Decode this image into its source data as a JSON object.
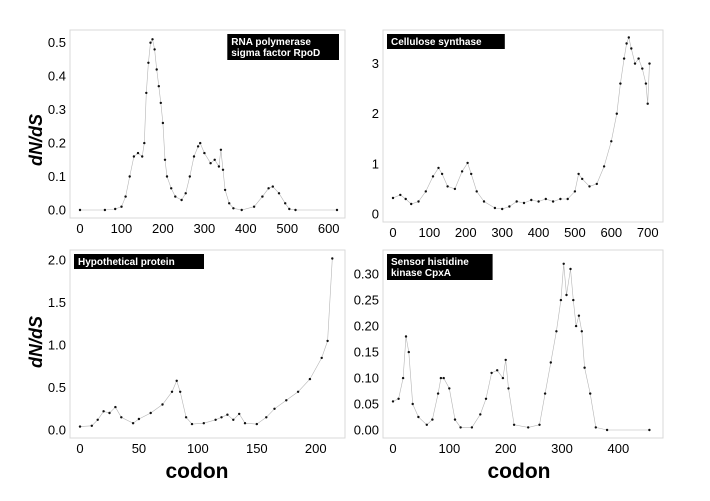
{
  "y_axis_label": "dN/dS",
  "x_axis_label": "codon",
  "chart_data": [
    {
      "type": "scatter",
      "title_lines": [
        "RNA polymerase",
        "sigma factor RpoD"
      ],
      "xlim": [
        0,
        620
      ],
      "ylim": [
        0,
        0.52
      ],
      "xticks": [
        0,
        100,
        200,
        300,
        400,
        500,
        600
      ],
      "yticks": [
        0,
        0.1,
        0.2,
        0.3,
        0.4,
        0.5
      ],
      "yfmt": 1,
      "profile": [
        [
          0,
          0
        ],
        [
          60,
          0
        ],
        [
          85,
          0.003
        ],
        [
          100,
          0.01
        ],
        [
          110,
          0.04
        ],
        [
          120,
          0.1
        ],
        [
          130,
          0.16
        ],
        [
          140,
          0.17
        ],
        [
          150,
          0.16
        ],
        [
          155,
          0.2
        ],
        [
          160,
          0.35
        ],
        [
          165,
          0.44
        ],
        [
          170,
          0.5
        ],
        [
          175,
          0.51
        ],
        [
          180,
          0.48
        ],
        [
          185,
          0.42
        ],
        [
          190,
          0.37
        ],
        [
          195,
          0.32
        ],
        [
          200,
          0.26
        ],
        [
          205,
          0.15
        ],
        [
          210,
          0.1
        ],
        [
          220,
          0.065
        ],
        [
          230,
          0.04
        ],
        [
          245,
          0.03
        ],
        [
          255,
          0.05
        ],
        [
          265,
          0.1
        ],
        [
          275,
          0.16
        ],
        [
          285,
          0.19
        ],
        [
          290,
          0.2
        ],
        [
          300,
          0.17
        ],
        [
          315,
          0.14
        ],
        [
          325,
          0.15
        ],
        [
          335,
          0.13
        ],
        [
          340,
          0.18
        ],
        [
          345,
          0.12
        ],
        [
          350,
          0.06
        ],
        [
          360,
          0.02
        ],
        [
          370,
          0.005
        ],
        [
          390,
          0
        ],
        [
          420,
          0.01
        ],
        [
          440,
          0.04
        ],
        [
          455,
          0.065
        ],
        [
          465,
          0.07
        ],
        [
          480,
          0.05
        ],
        [
          495,
          0.02
        ],
        [
          505,
          0.003
        ],
        [
          520,
          0
        ],
        [
          620,
          0
        ]
      ]
    },
    {
      "type": "scatter",
      "title_lines": [
        "Cellulose synthase"
      ],
      "xlim": [
        0,
        720
      ],
      "ylim": [
        0,
        3.55
      ],
      "xticks": [
        0,
        100,
        200,
        300,
        400,
        500,
        600,
        700
      ],
      "yticks": [
        0,
        1,
        2,
        3
      ],
      "yfmt": 0,
      "profile": [
        [
          0,
          0.32
        ],
        [
          20,
          0.38
        ],
        [
          35,
          0.3
        ],
        [
          50,
          0.2
        ],
        [
          70,
          0.25
        ],
        [
          90,
          0.45
        ],
        [
          110,
          0.75
        ],
        [
          125,
          0.92
        ],
        [
          135,
          0.8
        ],
        [
          150,
          0.55
        ],
        [
          170,
          0.5
        ],
        [
          190,
          0.85
        ],
        [
          205,
          1.02
        ],
        [
          215,
          0.8
        ],
        [
          230,
          0.45
        ],
        [
          250,
          0.25
        ],
        [
          280,
          0.12
        ],
        [
          300,
          0.1
        ],
        [
          320,
          0.15
        ],
        [
          340,
          0.25
        ],
        [
          360,
          0.22
        ],
        [
          380,
          0.28
        ],
        [
          400,
          0.25
        ],
        [
          420,
          0.3
        ],
        [
          440,
          0.25
        ],
        [
          460,
          0.3
        ],
        [
          480,
          0.3
        ],
        [
          500,
          0.45
        ],
        [
          510,
          0.8
        ],
        [
          520,
          0.7
        ],
        [
          540,
          0.55
        ],
        [
          560,
          0.6
        ],
        [
          580,
          0.95
        ],
        [
          600,
          1.45
        ],
        [
          615,
          2.0
        ],
        [
          625,
          2.6
        ],
        [
          635,
          3.1
        ],
        [
          642,
          3.4
        ],
        [
          648,
          3.52
        ],
        [
          655,
          3.3
        ],
        [
          665,
          3.0
        ],
        [
          675,
          3.1
        ],
        [
          685,
          2.9
        ],
        [
          695,
          2.6
        ],
        [
          700,
          2.2
        ],
        [
          705,
          3.0
        ]
      ]
    },
    {
      "type": "scatter",
      "title_lines": [
        "Hypothetical protein"
      ],
      "xlim": [
        0,
        218
      ],
      "ylim": [
        0,
        2.05
      ],
      "xticks": [
        0,
        50,
        100,
        150,
        200
      ],
      "yticks": [
        0,
        0.5,
        1.0,
        1.5,
        2.0
      ],
      "yfmt": 1,
      "profile": [
        [
          0,
          0.04
        ],
        [
          10,
          0.05
        ],
        [
          15,
          0.12
        ],
        [
          20,
          0.22
        ],
        [
          25,
          0.2
        ],
        [
          30,
          0.27
        ],
        [
          35,
          0.15
        ],
        [
          45,
          0.08
        ],
        [
          50,
          0.13
        ],
        [
          60,
          0.2
        ],
        [
          70,
          0.3
        ],
        [
          78,
          0.45
        ],
        [
          82,
          0.58
        ],
        [
          85,
          0.45
        ],
        [
          90,
          0.15
        ],
        [
          95,
          0.07
        ],
        [
          105,
          0.08
        ],
        [
          115,
          0.12
        ],
        [
          120,
          0.15
        ],
        [
          125,
          0.18
        ],
        [
          130,
          0.12
        ],
        [
          135,
          0.19
        ],
        [
          140,
          0.08
        ],
        [
          150,
          0.07
        ],
        [
          158,
          0.15
        ],
        [
          165,
          0.25
        ],
        [
          175,
          0.35
        ],
        [
          185,
          0.45
        ],
        [
          195,
          0.6
        ],
        [
          205,
          0.85
        ],
        [
          210,
          1.05
        ],
        [
          214,
          2.02
        ]
      ]
    },
    {
      "type": "scatter",
      "title_lines": [
        "Sensor histidine",
        "kinase CpxA"
      ],
      "xlim": [
        0,
        465
      ],
      "ylim": [
        0,
        0.335
      ],
      "xticks": [
        0,
        100,
        200,
        300,
        400
      ],
      "yticks": [
        0,
        0.05,
        0.1,
        0.15,
        0.2,
        0.25,
        0.3
      ],
      "yfmt": 2,
      "profile": [
        [
          0,
          0.055
        ],
        [
          10,
          0.06
        ],
        [
          18,
          0.1
        ],
        [
          23,
          0.18
        ],
        [
          28,
          0.15
        ],
        [
          35,
          0.05
        ],
        [
          45,
          0.025
        ],
        [
          60,
          0.01
        ],
        [
          70,
          0.02
        ],
        [
          80,
          0.07
        ],
        [
          85,
          0.1
        ],
        [
          90,
          0.1
        ],
        [
          100,
          0.08
        ],
        [
          110,
          0.02
        ],
        [
          120,
          0.005
        ],
        [
          140,
          0.005
        ],
        [
          155,
          0.03
        ],
        [
          165,
          0.06
        ],
        [
          175,
          0.11
        ],
        [
          185,
          0.115
        ],
        [
          195,
          0.1
        ],
        [
          200,
          0.135
        ],
        [
          205,
          0.08
        ],
        [
          215,
          0.01
        ],
        [
          240,
          0.005
        ],
        [
          260,
          0.01
        ],
        [
          270,
          0.07
        ],
        [
          280,
          0.13
        ],
        [
          290,
          0.19
        ],
        [
          298,
          0.25
        ],
        [
          303,
          0.32
        ],
        [
          308,
          0.26
        ],
        [
          315,
          0.31
        ],
        [
          320,
          0.25
        ],
        [
          325,
          0.2
        ],
        [
          330,
          0.22
        ],
        [
          335,
          0.19
        ],
        [
          340,
          0.12
        ],
        [
          350,
          0.07
        ],
        [
          360,
          0.005
        ],
        [
          380,
          0
        ],
        [
          455,
          0
        ]
      ]
    }
  ]
}
